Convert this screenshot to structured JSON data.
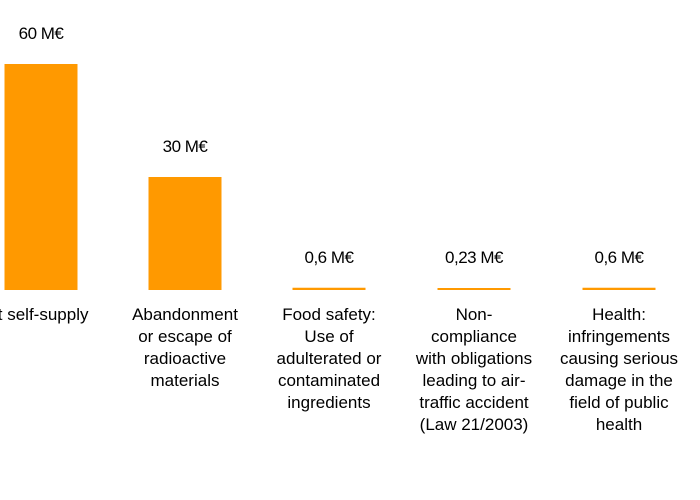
{
  "chart_data": {
    "type": "bar",
    "title": "",
    "xlabel": "",
    "ylabel": "",
    "unit": "M€",
    "ylim": [
      0,
      60
    ],
    "grid": false,
    "bar_color": "#ff9900",
    "categories": [
      "it self-supply",
      "Abandonment or escape of radioactive materials",
      "Food safety: Use of adulterated or contaminated ingredients",
      "Non-compliance with obligations leading to air-traffic accident (Law 21/2003)",
      "Health: infringements causing serious damage in the field of public health"
    ],
    "category_lines": [
      [
        "it self-supply"
      ],
      [
        "Abandonment",
        "or escape of",
        "radioactive",
        "materials"
      ],
      [
        "Food safety:",
        "Use of",
        "adulterated or",
        "contaminated",
        "ingredients"
      ],
      [
        "Non-",
        "compliance",
        "with obligations",
        "leading to air-",
        "traffic accident",
        "(Law 21/2003)"
      ],
      [
        "Health:",
        "infringements",
        "causing serious",
        "damage in the",
        "field of public",
        "health"
      ]
    ],
    "values": [
      60,
      30,
      0.6,
      0.23,
      0.6
    ],
    "data_labels": [
      "60 M€",
      "30 M€",
      "0,6 M€",
      "0,23 M€",
      "0,6 M€"
    ]
  }
}
